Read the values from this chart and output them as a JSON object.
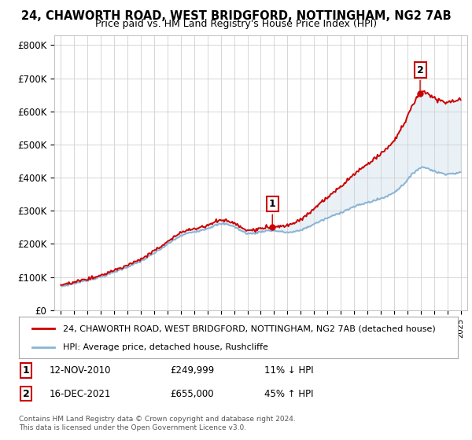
{
  "title": "24, CHAWORTH ROAD, WEST BRIDGFORD, NOTTINGHAM, NG2 7AB",
  "subtitle": "Price paid vs. HM Land Registry's House Price Index (HPI)",
  "ylim": [
    0,
    830000
  ],
  "yticks": [
    0,
    100000,
    200000,
    300000,
    400000,
    500000,
    600000,
    700000,
    800000
  ],
  "ytick_labels": [
    "£0",
    "£100K",
    "£200K",
    "£300K",
    "£400K",
    "£500K",
    "£600K",
    "£700K",
    "£800K"
  ],
  "hpi_color": "#8ab4d4",
  "property_color": "#cc0000",
  "sale1_date": 2010.87,
  "sale1_price": 249999,
  "sale2_date": 2021.96,
  "sale2_price": 655000,
  "legend_property": "24, CHAWORTH ROAD, WEST BRIDGFORD, NOTTINGHAM, NG2 7AB (detached house)",
  "legend_hpi": "HPI: Average price, detached house, Rushcliffe",
  "footnote": "Contains HM Land Registry data © Crown copyright and database right 2024.\nThis data is licensed under the Open Government Licence v3.0.",
  "background_color": "#ffffff",
  "hpi_data_years": [
    1995,
    1996,
    1997,
    1998,
    1999,
    2000,
    2001,
    2002,
    2003,
    2004,
    2005,
    2006,
    2007,
    2008,
    2009,
    2010,
    2011,
    2012,
    2013,
    2014,
    2015,
    2016,
    2017,
    2018,
    2019,
    2020,
    2021,
    2022,
    2023,
    2024,
    2025
  ],
  "hpi_data_values": [
    72000,
    81000,
    91000,
    101000,
    115000,
    131000,
    148000,
    172000,
    199000,
    224000,
    237000,
    247000,
    260000,
    252000,
    232000,
    237000,
    240000,
    235000,
    242000,
    260000,
    278000,
    295000,
    312000,
    325000,
    337000,
    356000,
    393000,
    430000,
    420000,
    412000,
    415000
  ]
}
